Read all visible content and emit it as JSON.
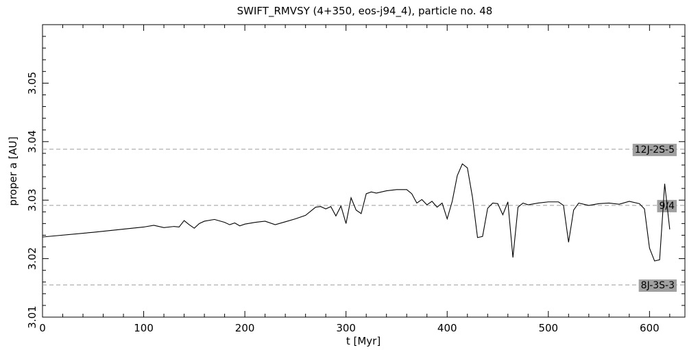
{
  "chart_data": {
    "type": "line",
    "title": "SWIFT_RMVSY (4+350, eos-j94_4), particle no. 48",
    "xlabel": "t [Myr]",
    "ylabel": "proper a [AU]",
    "xlim": [
      0,
      635
    ],
    "ylim": [
      3.01,
      3.06
    ],
    "xticks": [
      0,
      100,
      200,
      300,
      400,
      500,
      600
    ],
    "xtick_labels": [
      "0",
      "100",
      "200",
      "300",
      "400",
      "500",
      "600"
    ],
    "yticks": [
      3.01,
      3.02,
      3.03,
      3.04,
      3.05
    ],
    "ytick_labels": [
      "3.01",
      "3.02",
      "3.03",
      "3.04",
      "3.05"
    ],
    "grid": false,
    "resonances": [
      {
        "label": "12J-2S-5",
        "a": 3.0387
      },
      {
        "label": "9/4",
        "a": 3.0291
      },
      {
        "label": "8J-3S-3",
        "a": 3.0155
      }
    ],
    "series": [
      {
        "x": [
          0,
          50,
          100,
          110,
          120,
          130,
          135,
          140,
          145,
          150,
          155,
          160,
          170,
          180,
          185,
          190,
          195,
          200,
          210,
          220,
          230,
          240,
          250,
          260,
          265,
          270,
          275,
          280,
          285,
          290,
          295,
          300,
          305,
          310,
          315,
          320,
          325,
          330,
          340,
          350,
          360,
          365,
          370,
          375,
          380,
          385,
          390,
          395,
          400,
          405,
          410,
          415,
          420,
          425,
          430,
          435,
          440,
          445,
          450,
          455,
          460,
          465,
          470,
          475,
          480,
          490,
          500,
          510,
          515,
          520,
          525,
          530,
          540,
          550,
          560,
          570,
          580,
          590,
          595,
          600,
          605,
          610,
          615,
          620
        ],
        "y": [
          3.0237,
          3.0245,
          3.0254,
          3.0257,
          3.0253,
          3.0255,
          3.0254,
          3.0265,
          3.0258,
          3.0252,
          3.026,
          3.0264,
          3.0267,
          3.0262,
          3.0258,
          3.0261,
          3.0256,
          3.0259,
          3.0262,
          3.0264,
          3.0258,
          3.0263,
          3.0268,
          3.0274,
          3.0281,
          3.0288,
          3.0289,
          3.0285,
          3.0289,
          3.0273,
          3.029,
          3.026,
          3.0304,
          3.0283,
          3.0277,
          3.0311,
          3.0314,
          3.0312,
          3.0316,
          3.0318,
          3.0318,
          3.0311,
          3.0295,
          3.0301,
          3.0292,
          3.0298,
          3.0288,
          3.0295,
          3.0268,
          3.0298,
          3.0342,
          3.0362,
          3.0355,
          3.0305,
          3.0236,
          3.0238,
          3.0286,
          3.0295,
          3.0294,
          3.0275,
          3.0297,
          3.0202,
          3.0288,
          3.0295,
          3.0292,
          3.0295,
          3.0297,
          3.0297,
          3.0291,
          3.0228,
          3.0283,
          3.0295,
          3.0291,
          3.0294,
          3.0295,
          3.0293,
          3.0298,
          3.0294,
          3.0285,
          3.0218,
          3.0196,
          3.0198,
          3.0328,
          3.025
        ]
      }
    ]
  }
}
